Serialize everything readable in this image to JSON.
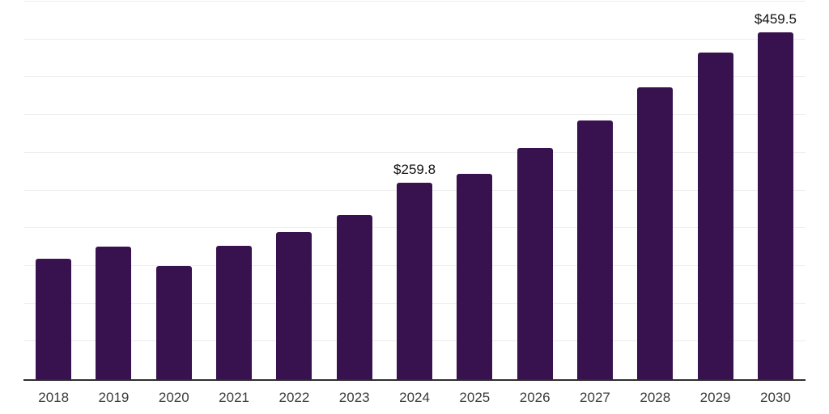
{
  "chart_data": {
    "type": "bar",
    "title": "",
    "xlabel": "",
    "ylabel": "",
    "categories": [
      "2018",
      "2019",
      "2020",
      "2021",
      "2022",
      "2023",
      "2024",
      "2025",
      "2026",
      "2027",
      "2028",
      "2029",
      "2030"
    ],
    "values": [
      159.5,
      175.9,
      150.0,
      176.6,
      195.2,
      217.3,
      259.8,
      272.0,
      305.9,
      342.6,
      386.0,
      432.6,
      459.5
    ],
    "data_labels": [
      "",
      "",
      "",
      "",
      "",
      "",
      "$259.8",
      "",
      "",
      "",
      "",
      "",
      "$459.5"
    ],
    "ylim": [
      0,
      500
    ],
    "gridline_step": 50,
    "grid": true,
    "legend": false,
    "colors": {
      "bar": "#38124E",
      "axis": "#2E2E2E",
      "gridline": "#EDEDED",
      "tick_label": "#3B3B3B",
      "data_label": "#111111",
      "background": "#FFFFFF"
    }
  }
}
